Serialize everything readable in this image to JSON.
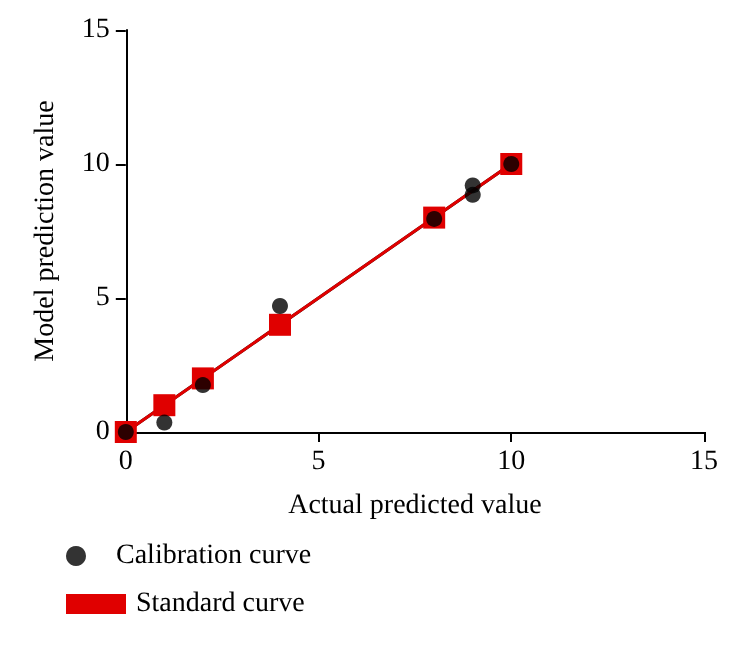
{
  "chart_data": {
    "type": "scatter",
    "xlabel": "Actual predicted value",
    "ylabel": "Model prediction value",
    "xlim": [
      0,
      15
    ],
    "xticks": [
      0,
      5,
      10,
      15
    ],
    "ylim": [
      0,
      15
    ],
    "yticks": [
      0,
      5,
      10,
      15
    ],
    "grid": false,
    "legend": "bottom left",
    "series": [
      {
        "type": "line",
        "color": "#000000",
        "x": [
          0,
          10
        ],
        "values": [
          0,
          10
        ],
        "marker": "none"
      },
      {
        "name": "Calibration curve",
        "color": "#000000",
        "marker": "circle",
        "x": [
          0,
          1,
          2,
          4,
          8,
          9,
          9,
          10
        ],
        "values": [
          0,
          0.35,
          1.75,
          4.7,
          7.95,
          8.85,
          9.2,
          10
        ]
      },
      {
        "name": "Standard curve",
        "type": "line",
        "color": "#e00000",
        "marker": "square",
        "x": [
          0,
          1,
          2,
          4,
          8,
          10
        ],
        "values": [
          0,
          1,
          2,
          4,
          8,
          10
        ]
      }
    ]
  }
}
